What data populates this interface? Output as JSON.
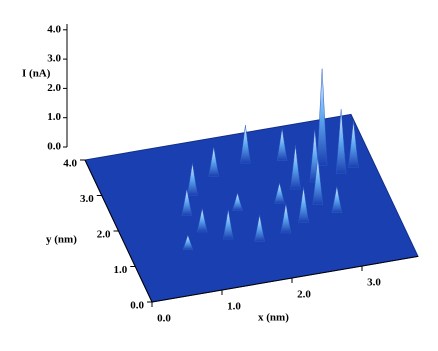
{
  "chart_data": {
    "type": "surface3d",
    "xlabel": "x (nm)",
    "ylabel": "y (nm)",
    "zlabel": "I (nA)",
    "xlim": [
      0,
      3.8
    ],
    "ylim": [
      0,
      4
    ],
    "zlim": [
      0,
      4.2
    ],
    "xticks": [
      {
        "value": 0,
        "label": "0.0"
      },
      {
        "value": 1,
        "label": "1.0"
      },
      {
        "value": 2,
        "label": "2.0"
      },
      {
        "value": 3,
        "label": "3.0"
      }
    ],
    "yticks": [
      {
        "value": 0,
        "label": "0.0"
      },
      {
        "value": 1,
        "label": "1.0"
      },
      {
        "value": 2,
        "label": "2.0"
      },
      {
        "value": 3,
        "label": "3.0"
      },
      {
        "value": 4,
        "label": "4.0"
      }
    ],
    "zticks": [
      {
        "value": 0,
        "label": "0.0"
      },
      {
        "value": 1,
        "label": "1.0"
      },
      {
        "value": 2,
        "label": "2.0"
      },
      {
        "value": 3,
        "label": "3.0"
      },
      {
        "value": 4,
        "label": "4.0"
      }
    ],
    "color": "#1a3fb0",
    "peaks": {
      "x": [
        1.6,
        2.1,
        2.6,
        1.2,
        3.1,
        3.3,
        3.5,
        1.0,
        2.9,
        2.6,
        1.7,
        2.3,
        2.8,
        1.1,
        3.0,
        0.8,
        1.4,
        2.5,
        1.8,
        2.2
      ],
      "y": [
        3.0,
        3.2,
        3.1,
        2.6,
        2.8,
        2.5,
        2.6,
        2.1,
        2.4,
        2.3,
        2.0,
        2.0,
        1.8,
        1.6,
        1.5,
        1.2,
        1.3,
        1.4,
        1.1,
        1.2
      ],
      "z": [
        1.0,
        1.3,
        1.1,
        1.1,
        3.3,
        2.2,
        1.6,
        0.9,
        1.8,
        1.5,
        0.6,
        0.7,
        1.6,
        0.8,
        0.9,
        0.5,
        1.0,
        1.2,
        0.9,
        1.0
      ]
    }
  }
}
